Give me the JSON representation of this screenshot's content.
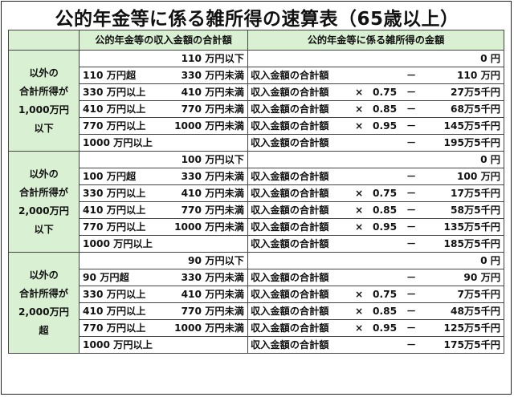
{
  "title": "公的年金等に係る雑所得の速算表（65歳以上）",
  "header": {
    "col_income": "公的年金等の収入金額の合計額",
    "col_misc": "公的年金等に係る雑所得の金額"
  },
  "groups": [
    {
      "label_lines": [
        "以外の",
        "合計所得が",
        "1,000万円",
        "以下"
      ],
      "rows": [
        {
          "from": "",
          "to": "110 万円以下",
          "expr": "",
          "op": "",
          "rate": "",
          "sign": "",
          "amount": "0 円"
        },
        {
          "from": "110 万円超",
          "to": "330 万円未満",
          "expr": "収入金額の合計額",
          "op": "",
          "rate": "",
          "sign": "－",
          "amount": "110 万円"
        },
        {
          "from": "330 万円以上",
          "to": "410 万円未満",
          "expr": "収入金額の合計額",
          "op": "×",
          "rate": "0.75",
          "sign": "－",
          "amount": "27万5千円"
        },
        {
          "from": "410 万円以上",
          "to": "770 万円未満",
          "expr": "収入金額の合計額",
          "op": "×",
          "rate": "0.85",
          "sign": "－",
          "amount": "68万5千円"
        },
        {
          "from": "770 万円以上",
          "to": "1000 万円未満",
          "expr": "収入金額の合計額",
          "op": "×",
          "rate": "0.95",
          "sign": "－",
          "amount": "145万5千円"
        },
        {
          "from": "1000 万円以上",
          "to": "",
          "expr": "収入金額の合計額",
          "op": "",
          "rate": "",
          "sign": "－",
          "amount": "195万5千円"
        }
      ]
    },
    {
      "label_lines": [
        "以外の",
        "合計所得が",
        "2,000万円",
        "以下"
      ],
      "rows": [
        {
          "from": "",
          "to": "100 万円以下",
          "expr": "",
          "op": "",
          "rate": "",
          "sign": "",
          "amount": "0 円"
        },
        {
          "from": "100 万円超",
          "to": "330 万円未満",
          "expr": "収入金額の合計額",
          "op": "",
          "rate": "",
          "sign": "－",
          "amount": "100 万円"
        },
        {
          "from": "330 万円以上",
          "to": "410 万円未満",
          "expr": "収入金額の合計額",
          "op": "×",
          "rate": "0.75",
          "sign": "－",
          "amount": "17万5千円"
        },
        {
          "from": "410 万円以上",
          "to": "770 万円未満",
          "expr": "収入金額の合計額",
          "op": "×",
          "rate": "0.85",
          "sign": "－",
          "amount": "58万5千円"
        },
        {
          "from": "770 万円以上",
          "to": "1000 万円未満",
          "expr": "収入金額の合計額",
          "op": "×",
          "rate": "0.95",
          "sign": "－",
          "amount": "135万5千円"
        },
        {
          "from": "1000 万円以上",
          "to": "",
          "expr": "収入金額の合計額",
          "op": "",
          "rate": "",
          "sign": "－",
          "amount": "185万5千円"
        }
      ]
    },
    {
      "label_lines": [
        "以外の",
        "合計所得が",
        "2,000万円",
        "超"
      ],
      "rows": [
        {
          "from": "",
          "to": "90 万円以下",
          "expr": "",
          "op": "",
          "rate": "",
          "sign": "",
          "amount": "0 円"
        },
        {
          "from": "90 万円超",
          "to": "330 万円未満",
          "expr": "収入金額の合計額",
          "op": "",
          "rate": "",
          "sign": "－",
          "amount": "90 万円"
        },
        {
          "from": "330 万円以上",
          "to": "410 万円未満",
          "expr": "収入金額の合計額",
          "op": "×",
          "rate": "0.75",
          "sign": "－",
          "amount": "7万5千円"
        },
        {
          "from": "410 万円以上",
          "to": "770 万円未満",
          "expr": "収入金額の合計額",
          "op": "×",
          "rate": "0.85",
          "sign": "－",
          "amount": "48万5千円"
        },
        {
          "from": "770 万円以上",
          "to": "1000 万円未満",
          "expr": "収入金額の合計額",
          "op": "×",
          "rate": "0.95",
          "sign": "－",
          "amount": "125万5千円"
        },
        {
          "from": "1000 万円以上",
          "to": "",
          "expr": "収入金額の合計額",
          "op": "",
          "rate": "",
          "sign": "－",
          "amount": "175万5千円"
        }
      ]
    }
  ]
}
